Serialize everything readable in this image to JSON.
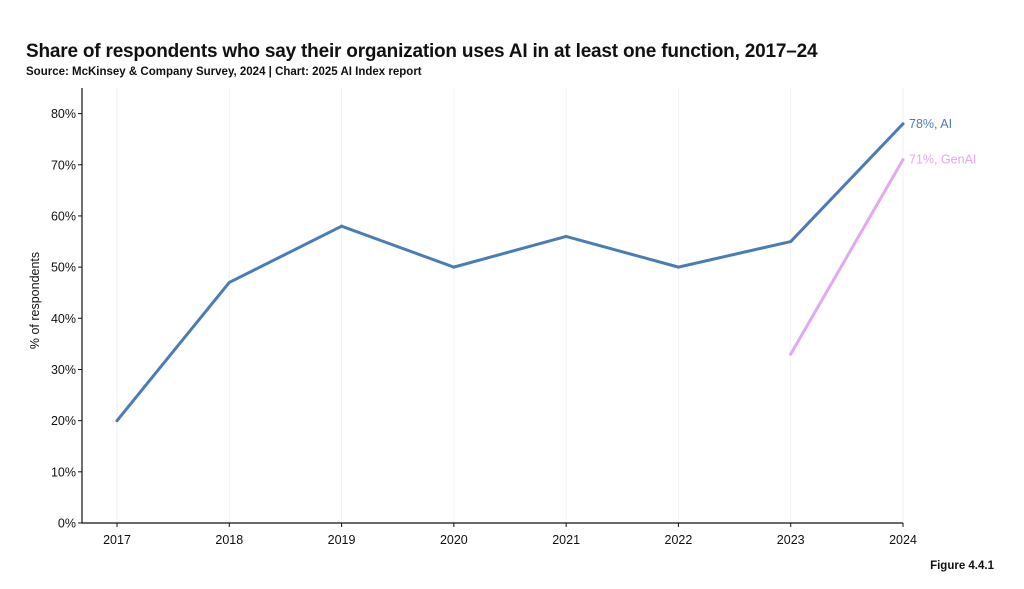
{
  "title": "Share of respondents who say their organization uses AI in at least one function, 2017–24",
  "subtitle": "Source: McKinsey & Company Survey, 2024 | Chart: 2025 AI Index report",
  "figure_label": "Figure 4.4.1",
  "chart_data": {
    "type": "line",
    "title": "Share of respondents who say their organization uses AI in at least one function, 2017–24",
    "xlabel": "",
    "ylabel": "% of respondents",
    "x": [
      "2017",
      "2018",
      "2019",
      "2020",
      "2021",
      "2022",
      "2023",
      "2024"
    ],
    "ylim": [
      0,
      85
    ],
    "yticks": [
      0,
      10,
      20,
      30,
      40,
      50,
      60,
      70,
      80
    ],
    "ytick_labels": [
      "0%",
      "10%",
      "20%",
      "30%",
      "40%",
      "50%",
      "60%",
      "70%",
      "80%"
    ],
    "grid": "vertical",
    "series": [
      {
        "name": "AI",
        "color": "#4a7db5",
        "x": [
          "2017",
          "2018",
          "2019",
          "2020",
          "2021",
          "2022",
          "2023",
          "2024"
        ],
        "values": [
          20,
          47,
          58,
          50,
          56,
          50,
          55,
          78
        ],
        "end_label": "78%, AI"
      },
      {
        "name": "GenAI",
        "color": "#e2a8f3",
        "x": [
          "2023",
          "2024"
        ],
        "values": [
          33,
          71
        ],
        "end_label": "71%, GenAI"
      }
    ]
  }
}
